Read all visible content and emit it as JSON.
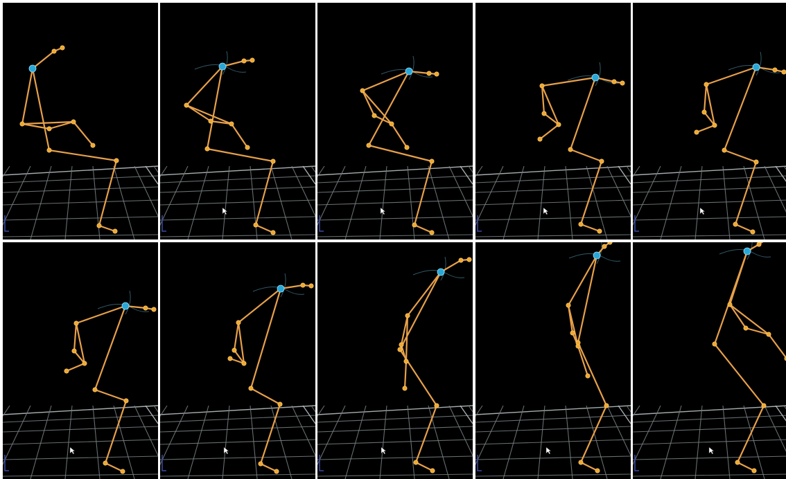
{
  "window": {
    "layout": "grid",
    "rows": 2,
    "columns": 5,
    "background": "#ffffff"
  },
  "colors": {
    "viewport_bg": "#000000",
    "bone": "#e7a04a",
    "joint": "#f0a830",
    "root_joint": "#2aa7d6",
    "floor_grid": "#7a8284"
  },
  "icons": {
    "root_joint": "blue-sphere-icon",
    "joint": "orange-dot-icon",
    "cursor": "mouse-pointer-icon",
    "axis": "axis-gizmo-icon"
  },
  "viewports": [
    {
      "id": "frame-1",
      "row": 1,
      "col": 1,
      "cursor_visible": false,
      "root_trail": false
    },
    {
      "id": "frame-2",
      "row": 1,
      "col": 2,
      "cursor_visible": true,
      "root_trail": true
    },
    {
      "id": "frame-3",
      "row": 1,
      "col": 3,
      "cursor_visible": true,
      "root_trail": true
    },
    {
      "id": "frame-4",
      "row": 1,
      "col": 4,
      "cursor_visible": true,
      "root_trail": true
    },
    {
      "id": "frame-5",
      "row": 1,
      "col": 5,
      "cursor_visible": true,
      "root_trail": true
    },
    {
      "id": "frame-6",
      "row": 2,
      "col": 1,
      "cursor_visible": true,
      "root_trail": true
    },
    {
      "id": "frame-7",
      "row": 2,
      "col": 2,
      "cursor_visible": true,
      "root_trail": true
    },
    {
      "id": "frame-8",
      "row": 2,
      "col": 3,
      "cursor_visible": true,
      "root_trail": true
    },
    {
      "id": "frame-9",
      "row": 2,
      "col": 4,
      "cursor_visible": true,
      "root_trail": true
    },
    {
      "id": "frame-10",
      "row": 2,
      "col": 5,
      "cursor_visible": true,
      "root_trail": true
    }
  ]
}
